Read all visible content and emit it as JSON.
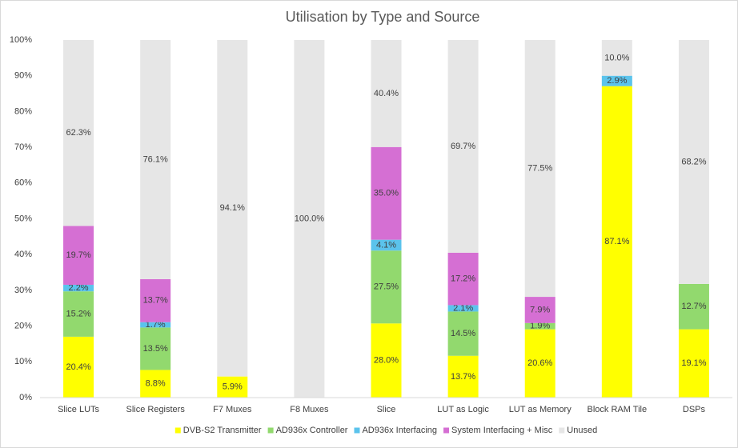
{
  "chart_data": {
    "type": "bar",
    "stacking": "percent",
    "title": "Utilisation by Type and Source",
    "categories": [
      "Slice LUTs",
      "Slice Registers",
      "F7 Muxes",
      "F8 Muxes",
      "Slice",
      "LUT as Logic",
      "LUT as Memory",
      "Block RAM Tile",
      "DSPs"
    ],
    "series": [
      {
        "name": "DVB-S2 Transmitter",
        "color": "#ffff00",
        "values": [
          20.4,
          8.8,
          5.9,
          null,
          28.0,
          13.7,
          20.6,
          87.1,
          19.1
        ],
        "value_labels": [
          "20.4%",
          "8.8%",
          "5.9%",
          null,
          "28.0%",
          "13.7%",
          "20.6%",
          "87.1%",
          "19.1%"
        ]
      },
      {
        "name": "AD936x Controller",
        "color": "#92d96e",
        "values": [
          15.2,
          13.5,
          null,
          null,
          27.5,
          14.5,
          1.9,
          null,
          12.7
        ],
        "value_labels": [
          "15.2%",
          "13.5%",
          null,
          null,
          "27.5%",
          "14.5%",
          "1.9%",
          null,
          "12.7%"
        ]
      },
      {
        "name": "AD936x Interfacing",
        "color": "#5bc3ec",
        "values": [
          2.2,
          1.7,
          null,
          null,
          4.1,
          2.1,
          null,
          2.9,
          null
        ],
        "value_labels": [
          "2.2%",
          "1.7%",
          null,
          null,
          "4.1%",
          "2.1%",
          null,
          "2.9%",
          null
        ]
      },
      {
        "name": "System Interfacing + Misc",
        "color": "#d56fd3",
        "values": [
          19.7,
          13.7,
          null,
          null,
          35.0,
          17.2,
          7.9,
          null,
          null
        ],
        "value_labels": [
          "19.7%",
          "13.7%",
          null,
          null,
          "35.0%",
          "17.2%",
          "7.9%",
          null,
          null
        ]
      },
      {
        "name": "Unused",
        "color": "#e6e6e6",
        "values": [
          62.3,
          76.1,
          94.1,
          100.0,
          40.4,
          69.7,
          77.5,
          10.0,
          68.2
        ],
        "value_labels": [
          "62.3%",
          "76.1%",
          "94.1%",
          "100.0%",
          "40.4%",
          "69.7%",
          "77.5%",
          "10.0%",
          "68.2%"
        ]
      }
    ],
    "ylim": [
      0,
      100
    ],
    "yticks": [
      {
        "value": 0,
        "label": "0%"
      },
      {
        "value": 10,
        "label": "10%"
      },
      {
        "value": 20,
        "label": "20%"
      },
      {
        "value": 30,
        "label": "30%"
      },
      {
        "value": 40,
        "label": "40%"
      },
      {
        "value": 50,
        "label": "50%"
      },
      {
        "value": 60,
        "label": "60%"
      },
      {
        "value": 70,
        "label": "70%"
      },
      {
        "value": 80,
        "label": "80%"
      },
      {
        "value": 90,
        "label": "90%"
      },
      {
        "value": 100,
        "label": "100%"
      }
    ],
    "grid": false,
    "legend": "bottom"
  }
}
